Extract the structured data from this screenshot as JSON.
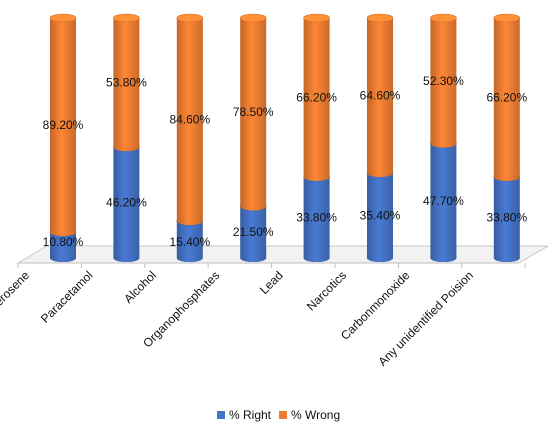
{
  "chart_data": {
    "type": "bar",
    "stacked": true,
    "percent_stacked": true,
    "style": "3d-cylinder",
    "categories": [
      "Kerosene",
      "Paracetamol",
      "Alcohol",
      "Organophosphates",
      "Lead",
      "Narcotics",
      "Carbonmonoxide",
      "Any unidentified Poision"
    ],
    "series": [
      {
        "name": "% Right",
        "values": [
          10.8,
          46.2,
          15.4,
          21.5,
          33.8,
          35.4,
          47.7,
          33.8
        ],
        "labels": [
          "10.80%",
          "46.20%",
          "15.40%",
          "21.50%",
          "33.80%",
          "35.40%",
          "47.70%",
          "33.80%"
        ],
        "color": "#4472C4"
      },
      {
        "name": "% Wrong",
        "values": [
          89.2,
          53.8,
          84.6,
          78.5,
          66.2,
          64.6,
          52.3,
          66.2
        ],
        "labels": [
          "89.20%",
          "53.80%",
          "84.60%",
          "78.50%",
          "66.20%",
          "64.60%",
          "52.30%",
          "66.20%"
        ],
        "color": "#ED7D31"
      }
    ],
    "ylim": [
      0,
      100
    ],
    "legend_position": "bottom",
    "grid": false
  }
}
